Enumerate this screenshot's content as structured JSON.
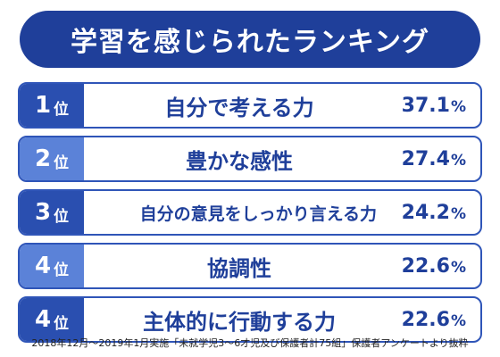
{
  "title": "学習を感じられたランキング",
  "footnote": "2018年12月～2019年1月実施「未就学児3～6才児及び保護者計75組」保護者アンケートより抜粋",
  "chart_data": {
    "type": "table",
    "title": "学習を感じられたランキング",
    "rank_suffix": "位",
    "unit": "%",
    "rows": [
      {
        "rank": "1",
        "label": "自分で考える力",
        "value": 37.1
      },
      {
        "rank": "2",
        "label": "豊かな感性",
        "value": 27.4
      },
      {
        "rank": "3",
        "label": "自分の意見をしっかり言える力",
        "value": 24.2
      },
      {
        "rank": "4",
        "label": "協調性",
        "value": 22.6
      },
      {
        "rank": "4",
        "label": "主体的に行動する力",
        "value": 22.6
      }
    ]
  },
  "colors": {
    "primary": "#1f3f9a",
    "rank_dark": "#2a4fb0",
    "rank_light": "#5b82d8",
    "border": "#2f55b8"
  }
}
